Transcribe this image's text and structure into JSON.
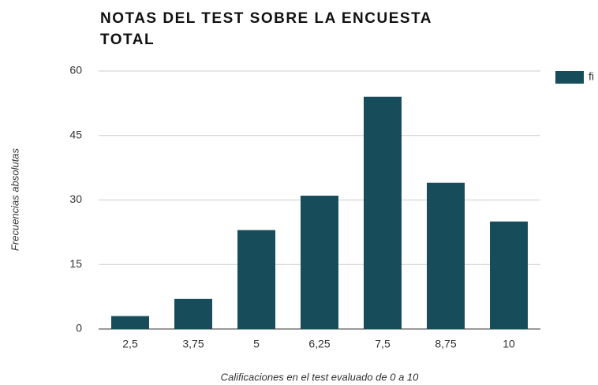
{
  "chart_data": {
    "type": "bar",
    "title": "NOTAS DEL TEST SOBRE LA ENCUESTA TOTAL",
    "x_label": "Calificaciones en el test evaluado de 0 a 10",
    "y_label": "Frecuencias absolutas",
    "categories": [
      "2,5",
      "3,75",
      "5",
      "6,25",
      "7,5",
      "8,75",
      "10"
    ],
    "series": [
      {
        "name": "fi",
        "color": "#174c5b",
        "values": [
          3,
          7,
          23,
          31,
          54,
          34,
          25
        ]
      }
    ],
    "ylim": [
      0,
      60
    ],
    "yticks": [
      0,
      15,
      30,
      45,
      60
    ],
    "grid": true,
    "legend": "right"
  }
}
